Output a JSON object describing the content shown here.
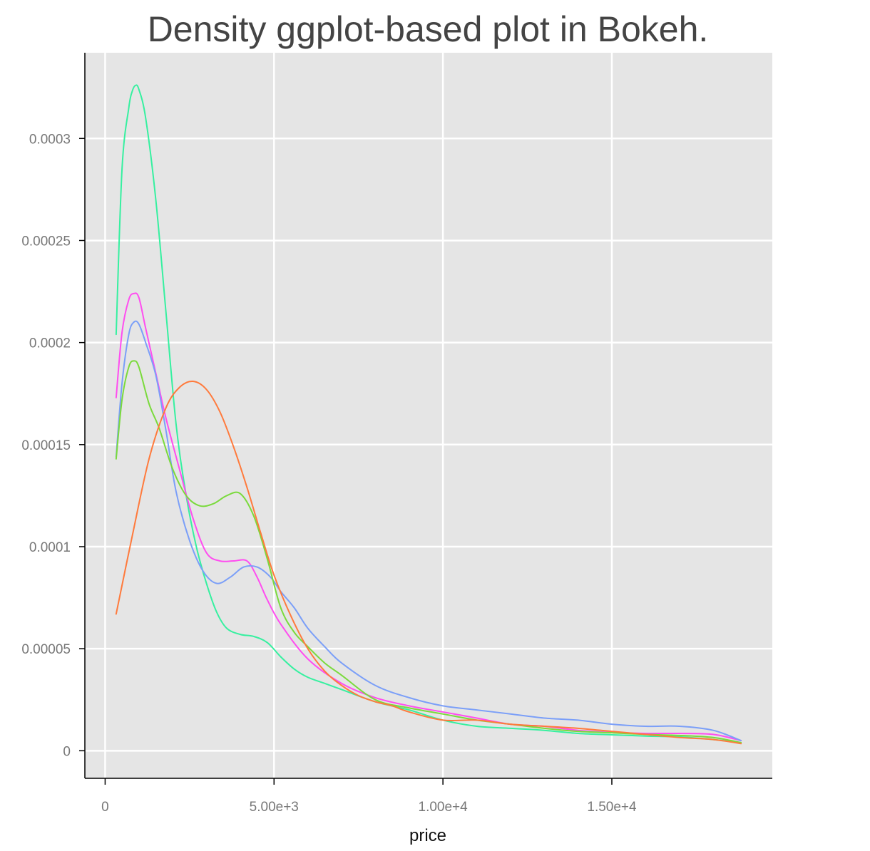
{
  "chart_data": {
    "type": "line",
    "title": "Density ggplot-based plot in Bokeh.",
    "xlabel": "price",
    "ylabel": "",
    "xlim": [
      -600,
      19750
    ],
    "ylim": [
      -1.35e-05,
      0.000342
    ],
    "grid": true,
    "legend": "none",
    "background_color": "#e5e5e5",
    "grid_color": "#ffffff",
    "x_ticks": [
      {
        "value": 0,
        "label": "0"
      },
      {
        "value": 5000,
        "label": "5.00e+3"
      },
      {
        "value": 10000,
        "label": "1.00e+4"
      },
      {
        "value": 15000,
        "label": "1.50e+4"
      }
    ],
    "y_ticks": [
      {
        "value": 0,
        "label": "0"
      },
      {
        "value": 5e-05,
        "label": "0.00005"
      },
      {
        "value": 0.0001,
        "label": "0.0001"
      },
      {
        "value": 0.00015,
        "label": "0.00015"
      },
      {
        "value": 0.0002,
        "label": "0.0002"
      },
      {
        "value": 0.00025,
        "label": "0.00025"
      },
      {
        "value": 0.0003,
        "label": "0.0003"
      }
    ],
    "series": [
      {
        "color": "#36f0a0",
        "x": [
          326,
          500,
          700,
          800,
          900,
          1000,
          1200,
          1500,
          1800,
          2100,
          2400,
          2700,
          3000,
          3300,
          3600,
          4000,
          4400,
          4800,
          5200,
          5600,
          6000,
          6500,
          7000,
          8000,
          9000,
          10000,
          11000,
          12000,
          13000,
          14000,
          15000,
          16000,
          17000,
          18000,
          18823
        ],
        "y": [
          0.000204,
          0.000285,
          0.000315,
          0.000323,
          0.000326,
          0.000324,
          0.00031,
          0.00027,
          0.000215,
          0.00016,
          0.000125,
          0.0001,
          8.2e-05,
          6.8e-05,
          6e-05,
          5.7e-05,
          5.6e-05,
          5.3e-05,
          4.6e-05,
          4e-05,
          3.6e-05,
          3.3e-05,
          3e-05,
          2.4e-05,
          2e-05,
          1.5e-05,
          1.2e-05,
          1.1e-05,
          1e-05,
          8.5e-06,
          7.8e-06,
          7.2e-06,
          6.8e-06,
          5.5e-06,
          4e-06
        ]
      },
      {
        "color": "#ff4df0",
        "x": [
          326,
          500,
          700,
          850,
          1000,
          1200,
          1500,
          1800,
          2200,
          2600,
          3000,
          3400,
          3800,
          4200,
          4500,
          4800,
          5200,
          6000,
          7000,
          8000,
          9000,
          10000,
          11000,
          12000,
          13000,
          14000,
          15000,
          16000,
          17000,
          18000,
          18823
        ],
        "y": [
          0.000173,
          0.000205,
          0.000221,
          0.000224,
          0.000222,
          0.000207,
          0.000185,
          0.000163,
          0.000138,
          0.000114,
          9.7e-05,
          9.3e-05,
          9.3e-05,
          9.3e-05,
          8.5e-05,
          7.4e-05,
          6.2e-05,
          4.5e-05,
          3.3e-05,
          2.6e-05,
          2.2e-05,
          1.9e-05,
          1.6e-05,
          1.3e-05,
          1.2e-05,
          1e-05,
          9e-06,
          8.5e-06,
          8.5e-06,
          8e-06,
          5e-06
        ]
      },
      {
        "color": "#7b9ff8",
        "x": [
          326,
          500,
          700,
          850,
          1000,
          1200,
          1500,
          1800,
          2100,
          2500,
          2900,
          3300,
          3700,
          4100,
          4500,
          4900,
          5200,
          5600,
          6000,
          6500,
          7000,
          8000,
          9000,
          10000,
          11000,
          12000,
          13000,
          14000,
          15000,
          16000,
          17000,
          18000,
          18823
        ],
        "y": [
          0.000144,
          0.00018,
          0.000204,
          0.00021,
          0.000209,
          0.0002,
          0.000184,
          0.000157,
          0.000127,
          0.000103,
          8.8e-05,
          8.2e-05,
          8.5e-05,
          9e-05,
          9e-05,
          8.5e-05,
          7.8e-05,
          7e-05,
          6e-05,
          5.1e-05,
          4.3e-05,
          3.2e-05,
          2.6e-05,
          2.2e-05,
          2e-05,
          1.8e-05,
          1.6e-05,
          1.5e-05,
          1.3e-05,
          1.2e-05,
          1.2e-05,
          1e-05,
          5e-06
        ]
      },
      {
        "color": "#7ada3c",
        "x": [
          326,
          500,
          700,
          850,
          1000,
          1300,
          1600,
          2000,
          2400,
          2800,
          3200,
          3600,
          4000,
          4400,
          4800,
          5200,
          5600,
          6000,
          6500,
          7000,
          8000,
          9000,
          10000,
          11000,
          12000,
          13000,
          14000,
          15000,
          16000,
          17000,
          18000,
          18823
        ],
        "y": [
          0.000143,
          0.000172,
          0.000188,
          0.000191,
          0.000188,
          0.00017,
          0.000158,
          0.000138,
          0.000125,
          0.00012,
          0.000121,
          0.000125,
          0.000126,
          0.000115,
          9.4e-05,
          7e-05,
          5.8e-05,
          5.1e-05,
          4.3e-05,
          3.7e-05,
          2.5e-05,
          2.1e-05,
          1.8e-05,
          1.5e-05,
          1.3e-05,
          1.1e-05,
          9.5e-06,
          8.8e-06,
          8e-06,
          7.5e-06,
          6.5e-06,
          4e-06
        ]
      },
      {
        "color": "#ff7a3c",
        "x": [
          326,
          800,
          1300,
          1800,
          2200,
          2600,
          3000,
          3400,
          3800,
          4200,
          4600,
          5000,
          5500,
          6000,
          6500,
          7000,
          7500,
          8000,
          8500,
          9000,
          10000,
          11000,
          12000,
          13000,
          14000,
          15000,
          16000,
          17000,
          18000,
          18823
        ],
        "y": [
          6.7e-05,
          0.000105,
          0.000143,
          0.000168,
          0.000178,
          0.000181,
          0.000177,
          0.000166,
          0.000149,
          0.000129,
          0.000107,
          8.6e-05,
          6.6e-05,
          5e-05,
          3.9e-05,
          3.2e-05,
          2.7e-05,
          2.4e-05,
          2.2e-05,
          1.9e-05,
          1.5e-05,
          1.5e-05,
          1.3e-05,
          1.2e-05,
          1.1e-05,
          9.5e-06,
          8e-06,
          6.5e-06,
          5.5e-06,
          3.5e-06
        ]
      }
    ]
  }
}
